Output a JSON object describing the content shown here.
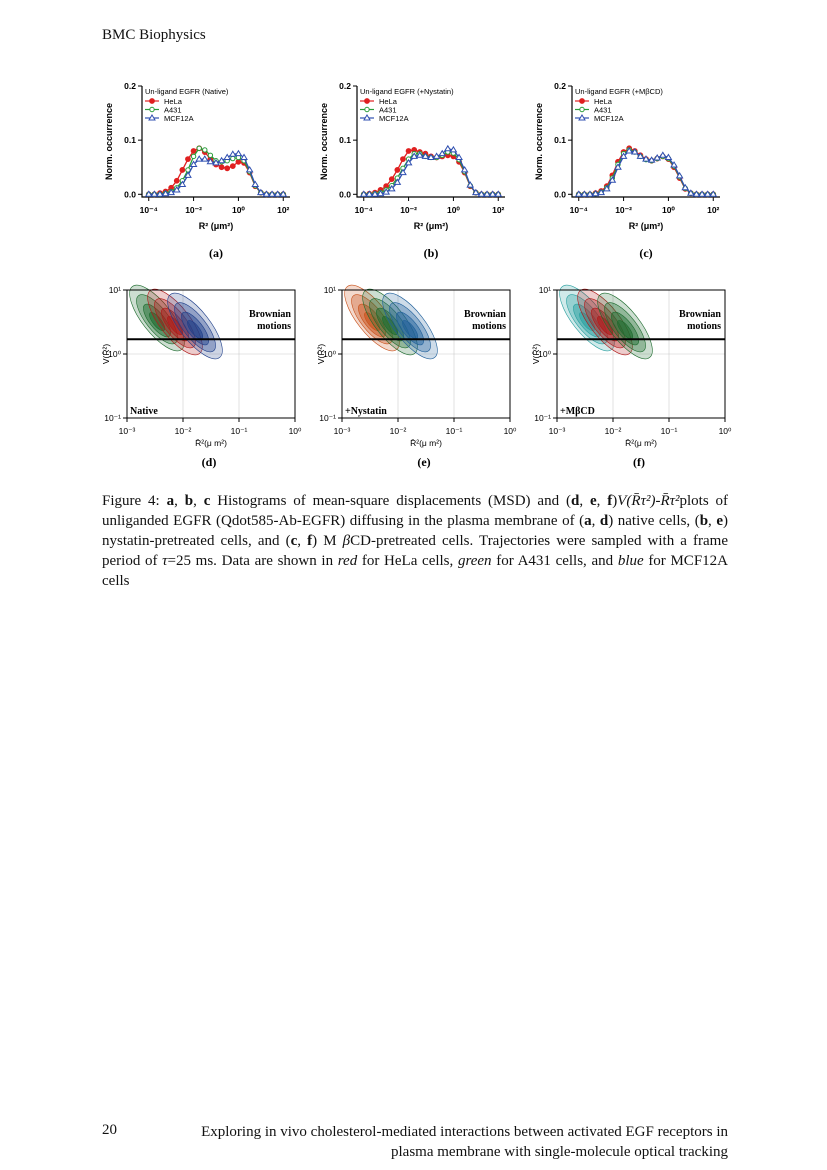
{
  "header": {
    "journal": "BMC Biophysics"
  },
  "chart_data": [
    {
      "type": "line",
      "panel_label": "(a)",
      "legend_title": "Un-ligand EGFR (Native)",
      "x_label": "R² (μm²)",
      "y_label": "Norm. occurrence",
      "x_log": true,
      "x": [
        0.0001,
        0.000178,
        0.000316,
        0.000562,
        0.001,
        0.00178,
        0.00316,
        0.00562,
        0.01,
        0.0178,
        0.0316,
        0.0562,
        0.1,
        0.178,
        0.316,
        0.562,
        1,
        1.78,
        3.16,
        5.62,
        10,
        17.8,
        31.6,
        56.2,
        100
      ],
      "series": [
        {
          "name": "HeLa",
          "color": "#e02020",
          "marker": "circle",
          "values": [
            0,
            0,
            0.002,
            0.005,
            0.012,
            0.025,
            0.045,
            0.065,
            0.08,
            0.085,
            0.078,
            0.065,
            0.055,
            0.05,
            0.048,
            0.052,
            0.06,
            0.058,
            0.04,
            0.015,
            0.003,
            0,
            0,
            0,
            0
          ]
        },
        {
          "name": "A431",
          "color": "#2a9d3a",
          "marker": "circle-open",
          "values": [
            0,
            0,
            0,
            0.002,
            0.005,
            0.012,
            0.025,
            0.045,
            0.07,
            0.085,
            0.082,
            0.072,
            0.062,
            0.06,
            0.062,
            0.066,
            0.068,
            0.062,
            0.042,
            0.016,
            0.003,
            0,
            0,
            0,
            0
          ]
        },
        {
          "name": "MCF12A",
          "color": "#2f4fb0",
          "marker": "triangle-open",
          "values": [
            0,
            0,
            0,
            0.001,
            0.003,
            0.008,
            0.018,
            0.035,
            0.055,
            0.065,
            0.065,
            0.06,
            0.058,
            0.062,
            0.068,
            0.074,
            0.075,
            0.068,
            0.045,
            0.018,
            0.003,
            0,
            0,
            0,
            0
          ]
        }
      ],
      "xlim": [
        5e-05,
        200
      ],
      "ylim": [
        -0.005,
        0.2
      ],
      "xticks": [
        {
          "value": 0.0001,
          "label": "10⁻⁴"
        },
        {
          "value": 0.01,
          "label": "10⁻²"
        },
        {
          "value": 1,
          "label": "10⁰"
        },
        {
          "value": 100,
          "label": "10²"
        }
      ],
      "yticks": [
        {
          "value": 0,
          "label": "0.0"
        },
        0.1,
        0.2
      ]
    },
    {
      "type": "line",
      "panel_label": "(b)",
      "legend_title": "Un-ligand EGFR (+Nystatin)",
      "x_label": "R² (μm²)",
      "y_label": "Norm. occurrence",
      "x_log": true,
      "x": [
        0.0001,
        0.000178,
        0.000316,
        0.000562,
        0.001,
        0.00178,
        0.00316,
        0.00562,
        0.01,
        0.0178,
        0.0316,
        0.0562,
        0.1,
        0.178,
        0.316,
        0.562,
        1,
        1.78,
        3.16,
        5.62,
        10,
        17.8,
        31.6,
        56.2,
        100
      ],
      "series": [
        {
          "name": "HeLa",
          "color": "#e02020",
          "marker": "circle",
          "values": [
            0,
            0.001,
            0.003,
            0.008,
            0.015,
            0.028,
            0.045,
            0.065,
            0.08,
            0.082,
            0.078,
            0.075,
            0.07,
            0.068,
            0.07,
            0.072,
            0.07,
            0.06,
            0.04,
            0.015,
            0.003,
            0,
            0,
            0,
            0
          ]
        },
        {
          "name": "A431",
          "color": "#2a9d3a",
          "marker": "circle-open",
          "values": [
            0,
            0,
            0.001,
            0.003,
            0.008,
            0.016,
            0.03,
            0.048,
            0.065,
            0.075,
            0.075,
            0.07,
            0.068,
            0.068,
            0.072,
            0.078,
            0.076,
            0.064,
            0.042,
            0.016,
            0.003,
            0,
            0,
            0,
            0
          ]
        },
        {
          "name": "MCF12A",
          "color": "#2f4fb0",
          "marker": "triangle-open",
          "values": [
            0,
            0,
            0,
            0.001,
            0.004,
            0.01,
            0.022,
            0.04,
            0.058,
            0.07,
            0.072,
            0.07,
            0.068,
            0.07,
            0.075,
            0.084,
            0.082,
            0.068,
            0.045,
            0.017,
            0.003,
            0,
            0,
            0,
            0
          ]
        }
      ],
      "xlim": [
        5e-05,
        200
      ],
      "ylim": [
        -0.005,
        0.2
      ],
      "xticks": [
        {
          "value": 0.0001,
          "label": "10⁻⁴"
        },
        {
          "value": 0.01,
          "label": "10⁻²"
        },
        {
          "value": 1,
          "label": "10⁰"
        },
        {
          "value": 100,
          "label": "10²"
        }
      ],
      "yticks": [
        {
          "value": 0,
          "label": "0.0"
        },
        0.1,
        0.2
      ]
    },
    {
      "type": "line",
      "panel_label": "(c)",
      "legend_title": "Un-ligand EGFR (+MβCD)",
      "x_label": "R² (μm²)",
      "y_label": "Norm. occurrence",
      "x_log": true,
      "x": [
        0.0001,
        0.000178,
        0.000316,
        0.000562,
        0.001,
        0.00178,
        0.00316,
        0.00562,
        0.01,
        0.0178,
        0.0316,
        0.0562,
        0.1,
        0.178,
        0.316,
        0.562,
        1,
        1.78,
        3.16,
        5.62,
        10,
        17.8,
        31.6,
        56.2,
        100
      ],
      "series": [
        {
          "name": "HeLa",
          "color": "#e02020",
          "marker": "circle",
          "values": [
            0,
            0,
            0,
            0.002,
            0.006,
            0.015,
            0.035,
            0.06,
            0.078,
            0.085,
            0.08,
            0.072,
            0.065,
            0.062,
            0.066,
            0.07,
            0.065,
            0.05,
            0.03,
            0.01,
            0.002,
            0,
            0,
            0,
            0
          ]
        },
        {
          "name": "A431",
          "color": "#2a9d3a",
          "marker": "circle-open",
          "values": [
            0,
            0,
            0,
            0.001,
            0.004,
            0.012,
            0.03,
            0.055,
            0.075,
            0.082,
            0.078,
            0.07,
            0.064,
            0.062,
            0.066,
            0.07,
            0.066,
            0.052,
            0.032,
            0.011,
            0.002,
            0,
            0,
            0,
            0
          ]
        },
        {
          "name": "MCF12A",
          "color": "#2f4fb0",
          "marker": "triangle-open",
          "values": [
            0,
            0,
            0,
            0.001,
            0.003,
            0.01,
            0.026,
            0.05,
            0.07,
            0.08,
            0.078,
            0.07,
            0.065,
            0.063,
            0.067,
            0.072,
            0.068,
            0.054,
            0.034,
            0.012,
            0.002,
            0,
            0,
            0,
            0
          ]
        }
      ],
      "xlim": [
        5e-05,
        200
      ],
      "ylim": [
        -0.005,
        0.2
      ],
      "xticks": [
        {
          "value": 0.0001,
          "label": "10⁻⁴"
        },
        {
          "value": 0.01,
          "label": "10⁻²"
        },
        {
          "value": 1,
          "label": "10⁰"
        },
        {
          "value": 100,
          "label": "10²"
        }
      ],
      "yticks": [
        {
          "value": 0,
          "label": "0.0"
        },
        0.1,
        0.2
      ]
    },
    {
      "type": "contour",
      "panel_label": "(d)",
      "condition_label": "Native",
      "annotation": [
        "Brownian",
        "motions"
      ],
      "x_label": "R̄²(μ m²)",
      "y_label": "V(R̄²)",
      "x_log": true,
      "y_log": true,
      "xlim": [
        0.001,
        1
      ],
      "ylim": [
        0.1,
        10
      ],
      "reference_line": 1.7,
      "colors": [
        "#1d6b2e",
        "#b01818",
        "#1f3f8a"
      ],
      "xticks": [
        {
          "value": 0.001,
          "label": "10⁻³"
        },
        {
          "value": 0.01,
          "label": "10⁻²"
        },
        {
          "value": 0.1,
          "label": "10⁻¹"
        },
        {
          "value": 1,
          "label": "10⁰"
        }
      ],
      "yticks": [
        {
          "value": 0.1,
          "label": "10⁻¹"
        },
        {
          "value": 1,
          "label": "10⁰"
        },
        {
          "value": 10,
          "label": "10¹"
        }
      ]
    },
    {
      "type": "contour",
      "panel_label": "(e)",
      "condition_label": "+Nystatin",
      "annotation": [
        "Brownian",
        "motions"
      ],
      "x_label": "R̄²(μ m²)",
      "y_label": "V(R̄²)",
      "x_log": true,
      "y_log": true,
      "xlim": [
        0.001,
        1
      ],
      "ylim": [
        0.1,
        10
      ],
      "reference_line": 1.7,
      "colors": [
        "#c8501a",
        "#1d6b2e",
        "#1f5f9a"
      ],
      "xticks": [
        {
          "value": 0.001,
          "label": "10⁻³"
        },
        {
          "value": 0.01,
          "label": "10⁻²"
        },
        {
          "value": 0.1,
          "label": "10⁻¹"
        },
        {
          "value": 1,
          "label": "10⁰"
        }
      ],
      "yticks": [
        {
          "value": 0.1,
          "label": "10⁻¹"
        },
        {
          "value": 1,
          "label": "10⁰"
        },
        {
          "value": 10,
          "label": "10¹"
        }
      ]
    },
    {
      "type": "contour",
      "panel_label": "(f)",
      "condition_label": "+MβCD",
      "annotation": [
        "Brownian",
        "motions"
      ],
      "x_label": "R̄²(μ m²)",
      "y_label": "V(R̄²)",
      "x_log": true,
      "y_log": true,
      "xlim": [
        0.001,
        1
      ],
      "ylim": [
        0.1,
        10
      ],
      "reference_line": 1.7,
      "colors": [
        "#2aa0a0",
        "#b01818",
        "#1d6b2e"
      ],
      "xticks": [
        {
          "value": 0.001,
          "label": "10⁻³"
        },
        {
          "value": 0.01,
          "label": "10⁻²"
        },
        {
          "value": 0.1,
          "label": "10⁻¹"
        },
        {
          "value": 1,
          "label": "10⁰"
        }
      ],
      "yticks": [
        {
          "value": 0.1,
          "label": "10⁻¹"
        },
        {
          "value": 1,
          "label": "10⁰"
        },
        {
          "value": 10,
          "label": "10¹"
        }
      ]
    }
  ],
  "caption": {
    "runs": [
      {
        "text": "Figure 4:  ",
        "style": "n"
      },
      {
        "text": "a",
        "style": "b"
      },
      {
        "text": ", ",
        "style": "n"
      },
      {
        "text": "b",
        "style": "b"
      },
      {
        "text": ", ",
        "style": "n"
      },
      {
        "text": "c",
        "style": "b"
      },
      {
        "text": " Histograms of mean-square displacements (MSD) and (",
        "style": "n"
      },
      {
        "text": "d",
        "style": "b"
      },
      {
        "text": ", ",
        "style": "n"
      },
      {
        "text": "e",
        "style": "b"
      },
      {
        "text": ", ",
        "style": "n"
      },
      {
        "text": "f",
        "style": "b"
      },
      {
        "text": ")",
        "style": "n"
      },
      {
        "text": "V(R̄τ²)",
        "style": "i"
      },
      {
        "text": "-",
        "style": "n"
      },
      {
        "text": "R̄τ²",
        "style": "i"
      },
      {
        "text": "plots of unliganded EGFR (Qdot585-Ab-EGFR) diffusing in the plasma membrane of (",
        "style": "n"
      },
      {
        "text": "a",
        "style": "b"
      },
      {
        "text": ", ",
        "style": "n"
      },
      {
        "text": "d",
        "style": "b"
      },
      {
        "text": ") native cells, (",
        "style": "n"
      },
      {
        "text": "b",
        "style": "b"
      },
      {
        "text": ", ",
        "style": "n"
      },
      {
        "text": "e",
        "style": "b"
      },
      {
        "text": ") nystatin-pretreated cells, and (",
        "style": "n"
      },
      {
        "text": "c",
        "style": "b"
      },
      {
        "text": ", ",
        "style": "n"
      },
      {
        "text": "f",
        "style": "b"
      },
      {
        "text": ") M ",
        "style": "n"
      },
      {
        "text": "β",
        "style": "i"
      },
      {
        "text": "CD-pretreated cells. Trajectories were sampled with a frame period of ",
        "style": "n"
      },
      {
        "text": "τ",
        "style": "i"
      },
      {
        "text": "=25 ms. Data are shown in ",
        "style": "n"
      },
      {
        "text": "red",
        "style": "i"
      },
      {
        "text": " for HeLa cells, ",
        "style": "n"
      },
      {
        "text": "green",
        "style": "i"
      },
      {
        "text": " for A431 cells, and ",
        "style": "n"
      },
      {
        "text": "blue",
        "style": "i"
      },
      {
        "text": " for MCF12A cells",
        "style": "n"
      }
    ]
  },
  "footer": {
    "page_number": "20",
    "title_lines": [
      "Exploring in vivo cholesterol-mediated interactions between activated EGF receptors in",
      "plasma membrane with single-molecule optical tracking"
    ]
  }
}
